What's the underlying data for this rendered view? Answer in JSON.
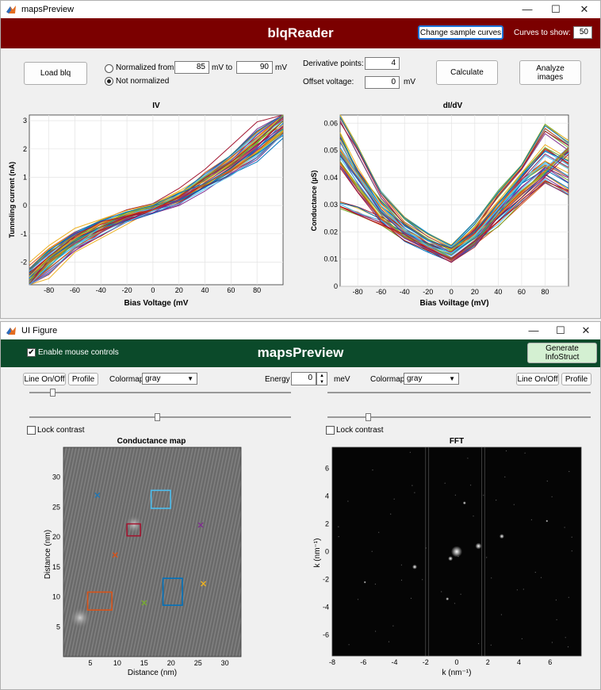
{
  "window1": {
    "title": "mapsPreview",
    "banner_title": "blqReader",
    "banner_color": "#7b0000",
    "change_sample_label": "Change sample curves",
    "curves_label": "Curves to show:",
    "curves_value": "50",
    "load_label": "Load blq",
    "normalized_label": "Normalized  from",
    "from_value": "85",
    "mv1": "mV  to",
    "to_value": "90",
    "mv2": "mV",
    "not_normalized_label": "Not normalized",
    "derivative_label": "Derivative points:",
    "derivative_value": "4",
    "offset_label": "Offset voltage:",
    "offset_value": "0",
    "offset_unit": "mV",
    "calculate_label": "Calculate",
    "analyze_label": "Analyze images"
  },
  "window2": {
    "title": "UI Figure",
    "banner_title": "mapsPreview",
    "banner_color": "#0b4a2a",
    "mouse_label": "Enable mouse controls",
    "mouse_checked": "✔",
    "generate_label": "Generate InfoStruct",
    "line_label": "Line On/Off",
    "profile_label": "Profile",
    "colormap_label": "Colormap",
    "colormap_value": "gray",
    "energy_label": "Energy",
    "energy_value": "0",
    "energy_unit": "meV",
    "line_label_r": "Line On/Off",
    "profile_label_r": "Profile",
    "colormap_label_r": "Colormap",
    "colormap_value_r": "gray",
    "lock_label": "Lock contrast",
    "lock_label_r": "Lock contrast"
  },
  "chart_data": [
    {
      "type": "line",
      "title": "IV",
      "xlabel": "Bias Voltage (mV",
      "ylabel": "Tunneling current (nA)",
      "xlim": [
        -95,
        100
      ],
      "ylim": [
        -2.8,
        3.2
      ],
      "xticks": [
        "-80",
        "-60",
        "-40",
        "-20",
        "0",
        "20",
        "40",
        "60",
        "80"
      ],
      "yticks": [
        "-2",
        "-1",
        "0",
        "1",
        "2",
        "3"
      ],
      "grid": true,
      "series_count": 50,
      "x": [
        -95,
        -80,
        -60,
        -40,
        -20,
        0,
        20,
        40,
        60,
        80,
        100
      ],
      "series": [
        {
          "values": [
            -2.7,
            -2.0,
            -1.3,
            -0.8,
            -0.4,
            -0.1,
            0.3,
            0.9,
            1.5,
            2.3,
            3.1
          ]
        },
        {
          "values": [
            -2.5,
            -1.8,
            -1.1,
            -0.7,
            -0.35,
            -0.08,
            0.25,
            0.8,
            1.3,
            2.0,
            2.9
          ]
        },
        {
          "values": [
            -2.8,
            -2.2,
            -1.4,
            -0.9,
            -0.45,
            -0.12,
            0.2,
            0.7,
            1.2,
            1.8,
            2.6
          ]
        },
        {
          "values": [
            -2.4,
            -1.7,
            -1.0,
            -0.6,
            -0.3,
            -0.05,
            0.35,
            1.0,
            1.7,
            2.5,
            3.2
          ]
        },
        {
          "values": [
            -2.6,
            -1.9,
            -1.2,
            -0.75,
            -0.4,
            -0.1,
            0.3,
            0.85,
            1.45,
            2.2,
            3.0
          ]
        }
      ]
    },
    {
      "type": "line",
      "title": "dI/dV",
      "xlabel": "Bias Voiltage (mV)",
      "ylabel": "Conductance (µS)",
      "xlim": [
        -95,
        100
      ],
      "ylim": [
        0,
        0.063
      ],
      "xticks": [
        "-80",
        "-60",
        "-40",
        "-20",
        "0",
        "20",
        "40",
        "60",
        "80"
      ],
      "yticks": [
        "0",
        "0.01",
        "0.02",
        "0.03",
        "0.04",
        "0.05",
        "0.06"
      ],
      "grid": true,
      "series_count": 50,
      "x": [
        -95,
        -80,
        -60,
        -40,
        -20,
        0,
        20,
        40,
        60,
        80,
        100
      ],
      "series": [
        {
          "values": [
            0.05,
            0.04,
            0.028,
            0.02,
            0.015,
            0.012,
            0.018,
            0.028,
            0.038,
            0.045,
            0.04
          ]
        },
        {
          "values": [
            0.045,
            0.036,
            0.025,
            0.018,
            0.014,
            0.01,
            0.016,
            0.026,
            0.034,
            0.042,
            0.05
          ]
        },
        {
          "values": [
            0.055,
            0.042,
            0.03,
            0.022,
            0.016,
            0.013,
            0.02,
            0.03,
            0.04,
            0.05,
            0.045
          ]
        },
        {
          "values": [
            0.03,
            0.028,
            0.024,
            0.019,
            0.015,
            0.011,
            0.017,
            0.024,
            0.032,
            0.04,
            0.035
          ]
        },
        {
          "values": [
            0.062,
            0.05,
            0.034,
            0.024,
            0.018,
            0.014,
            0.022,
            0.034,
            0.044,
            0.058,
            0.052
          ]
        }
      ]
    },
    {
      "type": "heatmap",
      "title": "Conductance map",
      "xlabel": "Distance (nm)",
      "ylabel": "Distance (nm)",
      "xlim": [
        0,
        33
      ],
      "ylim": [
        0,
        35
      ],
      "xticks": [
        "5",
        "10",
        "15",
        "20",
        "25",
        "30"
      ],
      "yticks": [
        "5",
        "10",
        "15",
        "20",
        "25",
        "30"
      ],
      "markers": [
        {
          "shape": "x",
          "color": "#1f77b4",
          "x": 6.3,
          "y": 27
        },
        {
          "shape": "x",
          "color": "#d95319",
          "x": 9.6,
          "y": 17
        },
        {
          "shape": "x",
          "color": "#77ac30",
          "x": 15,
          "y": 9
        },
        {
          "shape": "x",
          "color": "#edb120",
          "x": 26,
          "y": 12.2
        },
        {
          "shape": "x",
          "color": "#7e2f8e",
          "x": 25.5,
          "y": 22
        },
        {
          "shape": "rect",
          "color": "#4dbeee",
          "x": 16.3,
          "y": 24.8,
          "w": 3.6,
          "h": 3
        },
        {
          "shape": "rect",
          "color": "#a2142f",
          "x": 11.8,
          "y": 20.2,
          "w": 2.5,
          "h": 2
        },
        {
          "shape": "rect",
          "color": "#0072bd",
          "x": 18.5,
          "y": 8.6,
          "w": 3.6,
          "h": 4.5
        },
        {
          "shape": "rect",
          "color": "#d95319",
          "x": 4.5,
          "y": 7.8,
          "w": 4.5,
          "h": 3
        }
      ]
    },
    {
      "type": "heatmap",
      "title": "FFT",
      "xlabel": "k  (nm⁻¹)",
      "ylabel": "k (nm⁻¹)",
      "xlim": [
        -8,
        8
      ],
      "ylim": [
        -7.5,
        7.5
      ],
      "xticks": [
        "-8",
        "-6",
        "-4",
        "-2",
        "0",
        "2",
        "4",
        "6"
      ],
      "yticks": [
        "-6",
        "-4",
        "-2",
        "0",
        "2",
        "4",
        "6"
      ]
    }
  ]
}
